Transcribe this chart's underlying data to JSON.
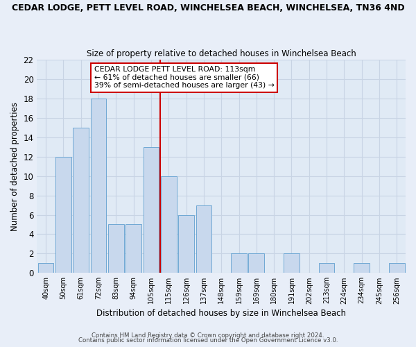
{
  "title": "CEDAR LODGE, PETT LEVEL ROAD, WINCHELSEA BEACH, WINCHELSEA, TN36 4ND",
  "subtitle": "Size of property relative to detached houses in Winchelsea Beach",
  "xlabel": "Distribution of detached houses by size in Winchelsea Beach",
  "ylabel": "Number of detached properties",
  "bar_labels": [
    "40sqm",
    "50sqm",
    "61sqm",
    "72sqm",
    "83sqm",
    "94sqm",
    "105sqm",
    "115sqm",
    "126sqm",
    "137sqm",
    "148sqm",
    "159sqm",
    "169sqm",
    "180sqm",
    "191sqm",
    "202sqm",
    "213sqm",
    "224sqm",
    "234sqm",
    "245sqm",
    "256sqm"
  ],
  "bar_heights": [
    1,
    12,
    15,
    18,
    5,
    5,
    13,
    10,
    6,
    7,
    0,
    2,
    2,
    0,
    2,
    0,
    1,
    0,
    1,
    0,
    1
  ],
  "bar_color": "#c8d8ed",
  "bar_edge_color": "#6fa8d4",
  "ylim": [
    0,
    22
  ],
  "yticks": [
    0,
    2,
    4,
    6,
    8,
    10,
    12,
    14,
    16,
    18,
    20,
    22
  ],
  "vline_color": "#cc0000",
  "legend_title": "CEDAR LODGE PETT LEVEL ROAD: 113sqm",
  "legend_line1": "← 61% of detached houses are smaller (66)",
  "legend_line2": "39% of semi-detached houses are larger (43) →",
  "legend_box_color": "#ffffff",
  "legend_box_edge": "#cc0000",
  "footer1": "Contains HM Land Registry data © Crown copyright and database right 2024.",
  "footer2": "Contains public sector information licensed under the Open Government Licence v3.0.",
  "bg_color": "#e8eef8",
  "plot_bg_color": "#e0eaf5",
  "grid_color": "#c8d4e4"
}
